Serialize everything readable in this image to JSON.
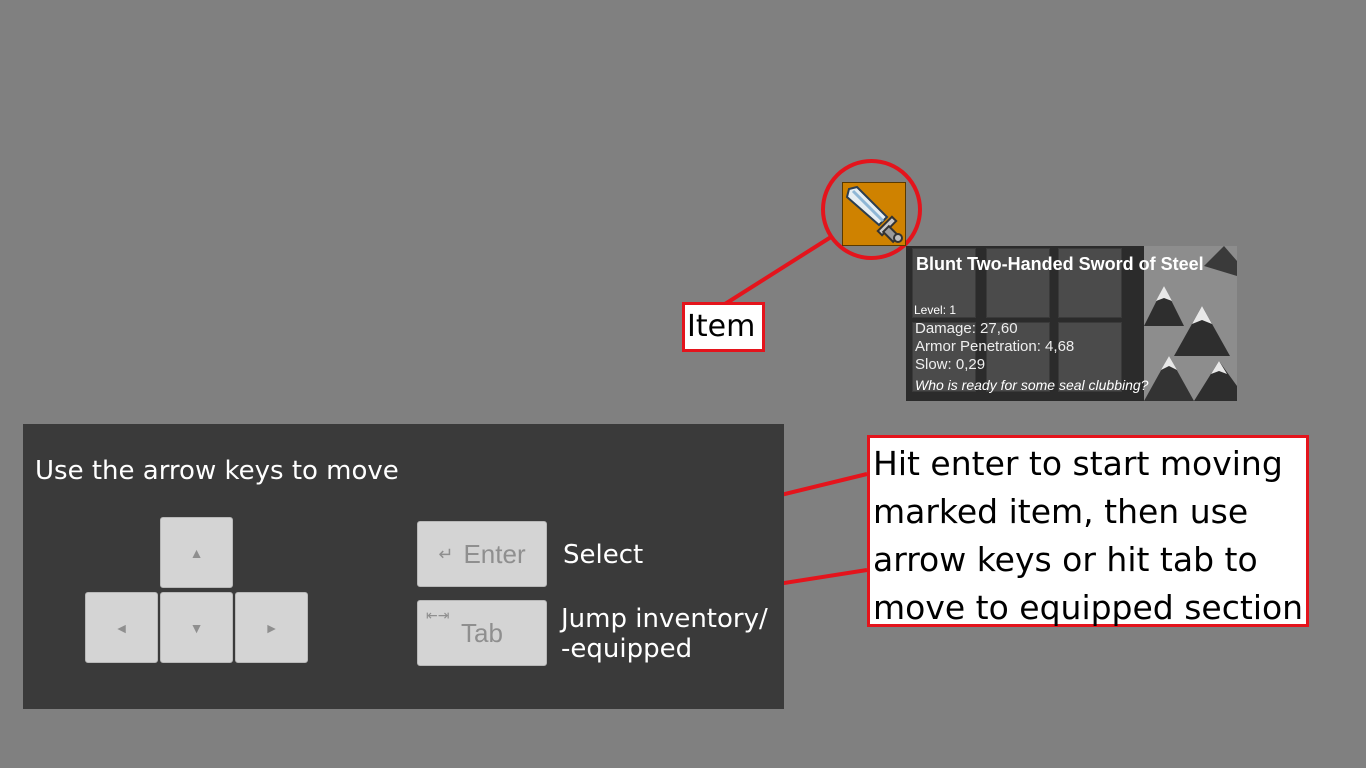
{
  "item": {
    "name": "Blunt Two-Handed Sword of Steel",
    "level": "Level: 1",
    "stats": [
      "Damage: 27,60",
      "Armor Penetration: 4,68",
      "Slow: 0,29"
    ],
    "flavor": "Who is ready for some seal clubbing?",
    "icon": "sword-icon",
    "slot_color": "#cf8200"
  },
  "callouts": {
    "item_label": "Item",
    "hint": "Hit enter to start moving\nmarked item, then use\narrow keys or hit tab to\nmove to equipped section",
    "accent_color": "#e4141c"
  },
  "controls": {
    "title": "Use the arrow keys to move",
    "arrows": {
      "up": "▲",
      "left": "◄",
      "down": "▼",
      "right": "►"
    },
    "enter": {
      "glyph": "↵",
      "label": "Enter",
      "action": "Select"
    },
    "tab": {
      "glyph": "⇤⇥",
      "label": "Tab",
      "action_line1": "Jump inventory/",
      "action_line2": "-equipped"
    }
  }
}
